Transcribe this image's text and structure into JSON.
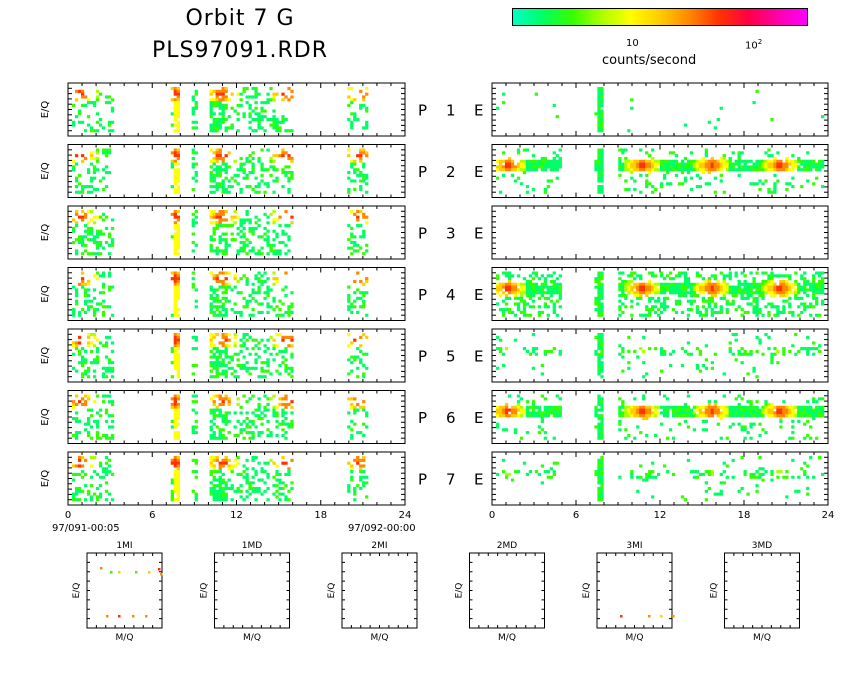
{
  "header": {
    "title_line1": "Orbit 7 G",
    "title_line2": "PLS97091.RDR"
  },
  "colorbar": {
    "label": "counts/second",
    "tick1": "10",
    "tick2": "10",
    "tick2_exp": "2",
    "colors": [
      "#00ffc8",
      "#00ff66",
      "#33ff00",
      "#aaff00",
      "#ffff00",
      "#ffcc00",
      "#ff8800",
      "#ff3300",
      "#ff0044",
      "#ff00aa",
      "#ff00ff"
    ]
  },
  "axes": {
    "ylabel": "E/Q",
    "left_x_ticks": [
      "0",
      "6",
      "12",
      "18",
      "24"
    ],
    "left_start": "97/091-00:05",
    "left_end": "97/092-00:00",
    "right_x_ticks": [
      "0",
      "6",
      "12",
      "18",
      "24"
    ]
  },
  "rows": [
    {
      "id": "1",
      "P": "P",
      "num": "1",
      "E": "E"
    },
    {
      "id": "2",
      "P": "P",
      "num": "2",
      "E": "E"
    },
    {
      "id": "3",
      "P": "P",
      "num": "3",
      "E": "E"
    },
    {
      "id": "4",
      "P": "P",
      "num": "4",
      "E": "E"
    },
    {
      "id": "5",
      "P": "P",
      "num": "5",
      "E": "E"
    },
    {
      "id": "6",
      "P": "P",
      "num": "6",
      "E": "E"
    },
    {
      "id": "7",
      "P": "P",
      "num": "7",
      "E": "E"
    }
  ],
  "mass_panels": [
    {
      "title": "1MI",
      "ylabel": "E/Q",
      "xlabel": "M/Q"
    },
    {
      "title": "1MD",
      "ylabel": "E/Q",
      "xlabel": "M/Q"
    },
    {
      "title": "2MI",
      "ylabel": "E/Q",
      "xlabel": "M/Q"
    },
    {
      "title": "2MD",
      "ylabel": "E/Q",
      "xlabel": "M/Q"
    },
    {
      "title": "3MI",
      "ylabel": "E/Q",
      "xlabel": "M/Q"
    },
    {
      "title": "3MD",
      "ylabel": "E/Q",
      "xlabel": "M/Q"
    }
  ],
  "chart_data": {
    "type": "heatmap",
    "x_range_hours": [
      0,
      24
    ],
    "x_ticks": [
      0,
      6,
      12,
      18,
      24
    ],
    "colorbar_scale": "log",
    "colorbar_label": "counts/second",
    "left_column": {
      "active_hours": [
        [
          0,
          3
        ],
        [
          7.2,
          7.8
        ],
        [
          8.7,
          9.0
        ],
        [
          10,
          12
        ],
        [
          12,
          16
        ],
        [
          20,
          21.5
        ]
      ],
      "hot_hours": [
        0.5,
        7.4,
        10.8,
        15.6,
        20.8
      ],
      "rows_with_data": [
        "1",
        "2",
        "3",
        "4",
        "5",
        "6",
        "7"
      ]
    },
    "right_column": {
      "active_hours": [
        [
          0,
          4.6
        ],
        [
          7.2,
          7.8
        ],
        [
          8.8,
          24
        ]
      ],
      "peak_hours": [
        0.8,
        10.6,
        15.7,
        20.7
      ],
      "rows_with_data": [
        "1",
        "2",
        "4",
        "5",
        "6",
        "7"
      ],
      "strong_rows": [
        "2",
        "4",
        "6"
      ],
      "empty_rows": [
        "3"
      ]
    }
  }
}
